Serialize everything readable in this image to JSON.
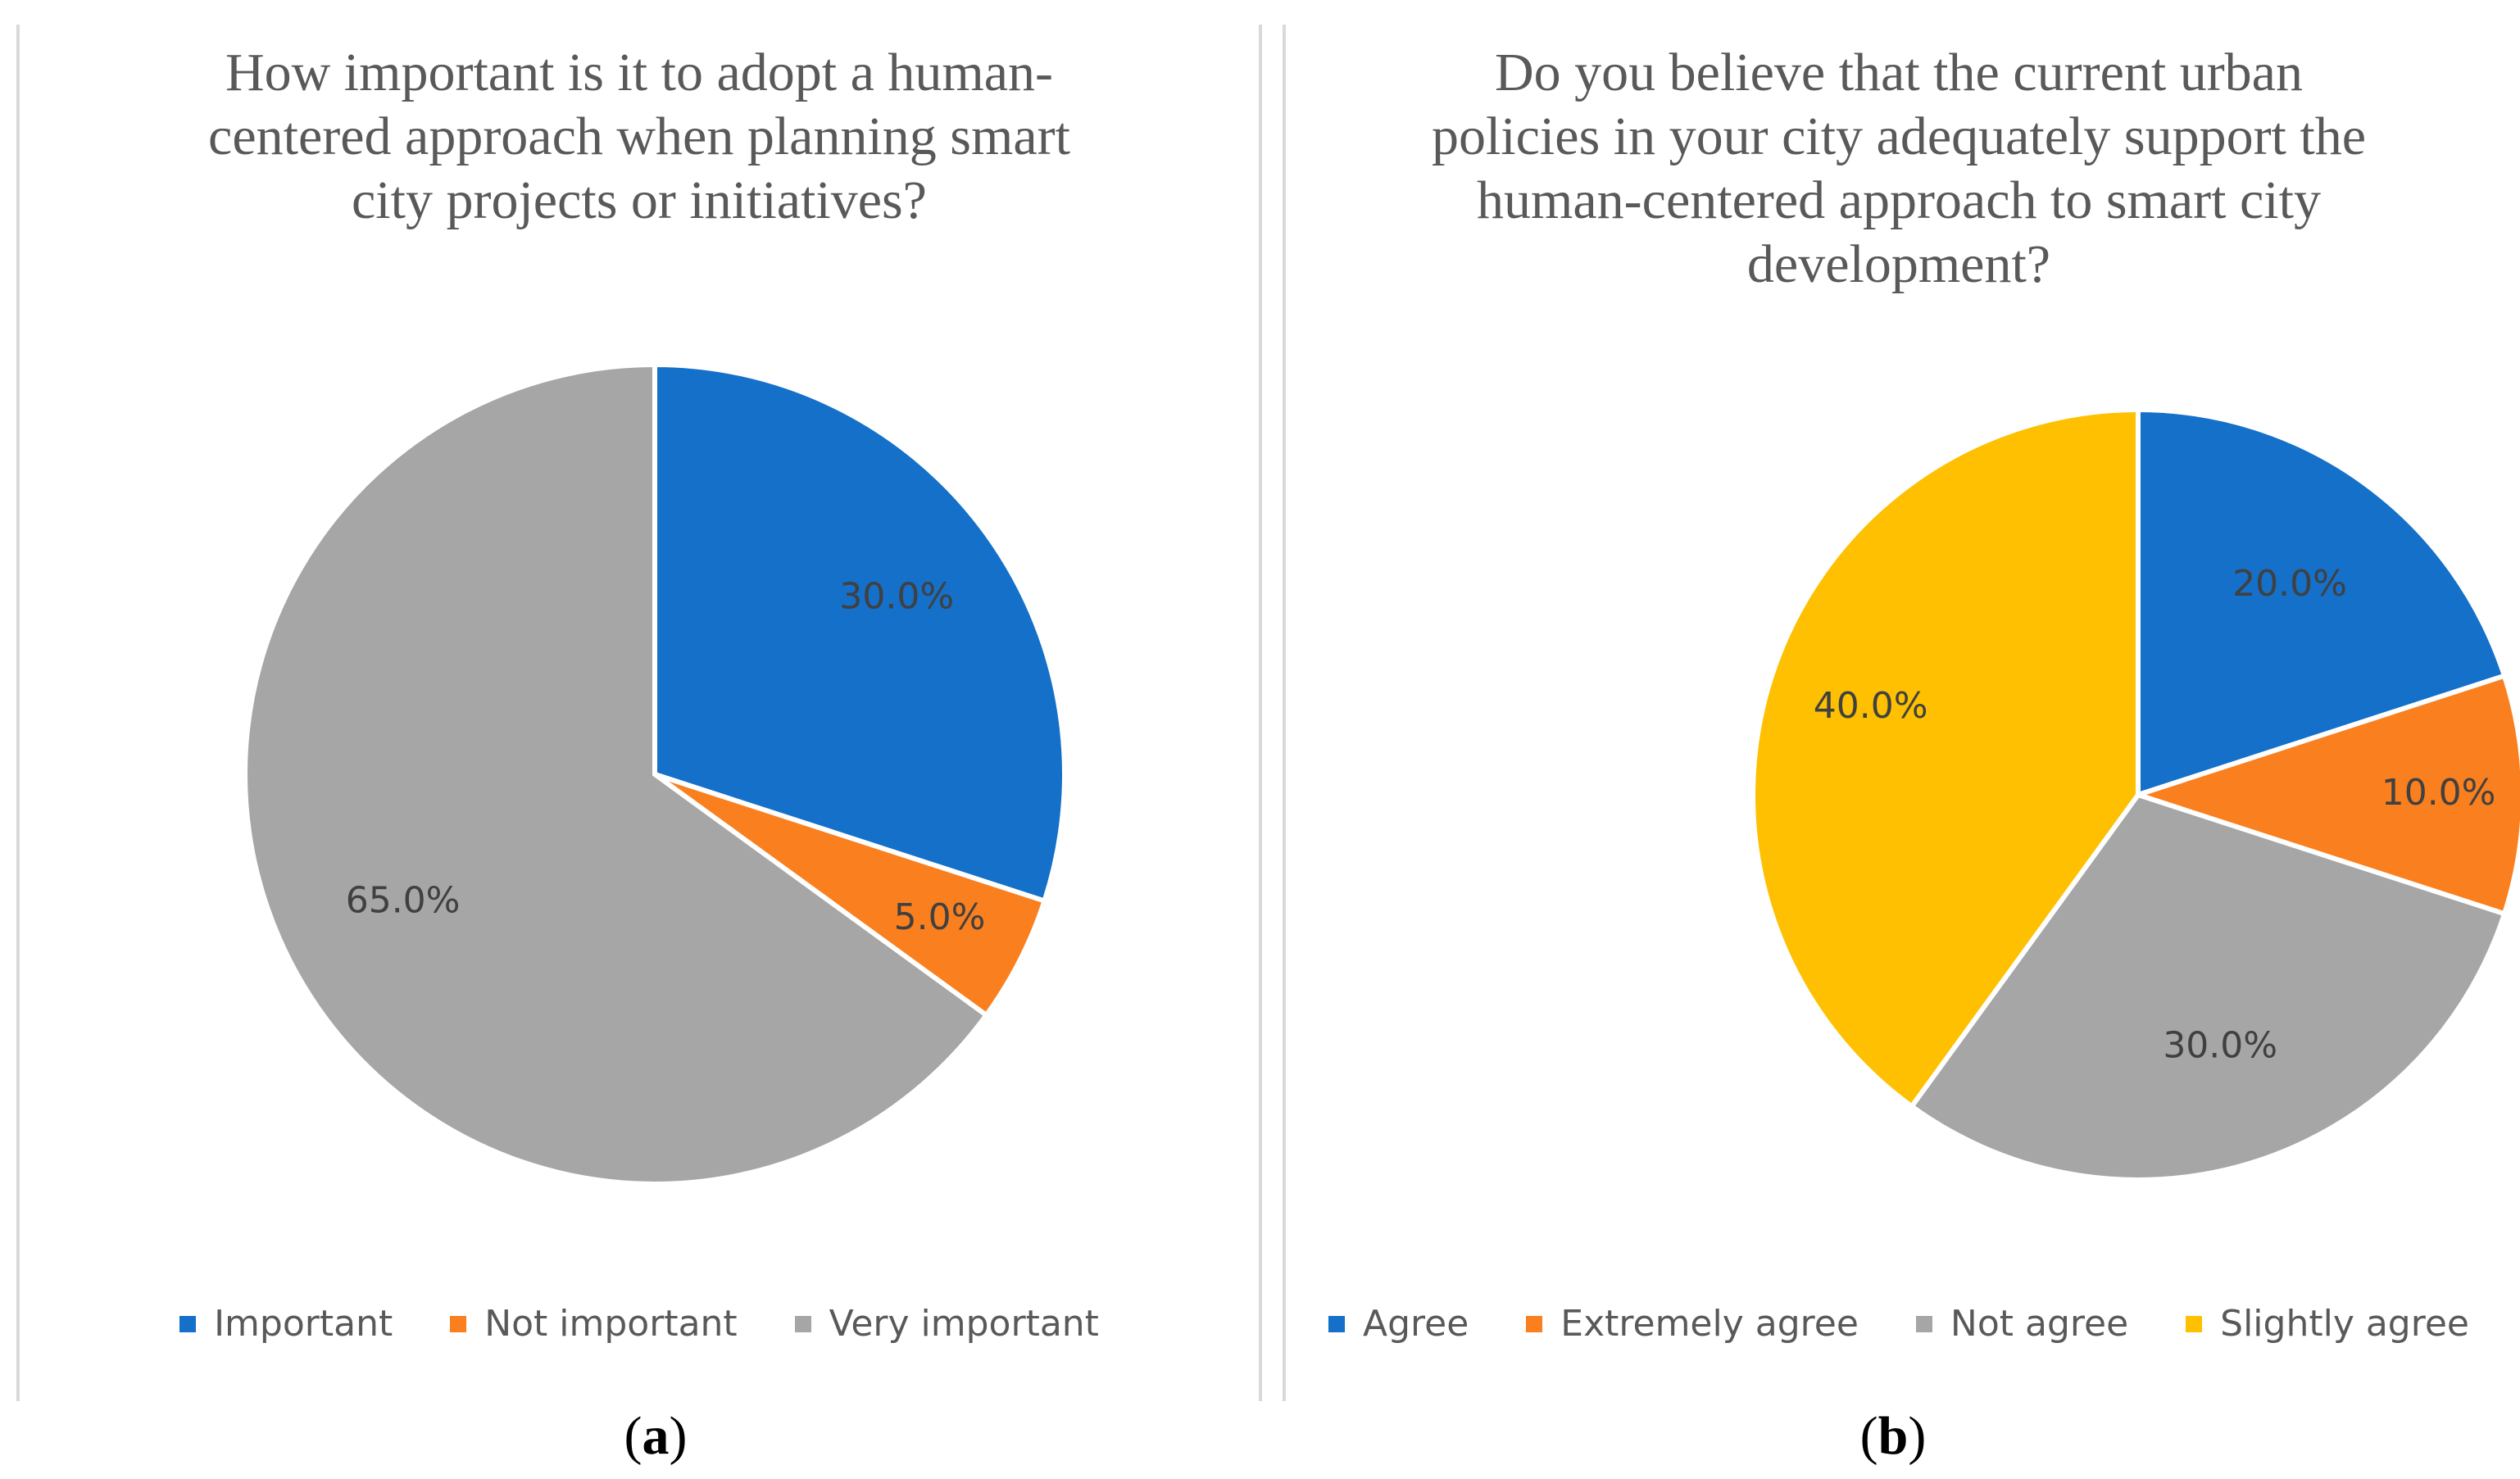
{
  "chart_data": [
    {
      "type": "pie",
      "title": "How important is it to adopt a human-centered approach when planning smart city projects or initiatives?",
      "title_lines": [
        "How important is it to adopt a human-",
        "centered approach when planning smart",
        "city projects or initiatives?"
      ],
      "categories": [
        "Important",
        "Not important",
        "Very important"
      ],
      "values": [
        30.0,
        5.0,
        65.0
      ],
      "labels": [
        "30.0%",
        "5.0%",
        "65.0%"
      ],
      "colors": [
        "#1470c8",
        "#f97f1f",
        "#a6a6a6"
      ],
      "legend_position": "bottom",
      "caption": "a"
    },
    {
      "type": "pie",
      "title": "Do you believe that the current urban policies in your city adequately support the human-centered approach to smart city development?",
      "title_lines": [
        "Do you believe that the current urban",
        "policies in your city adequately support the",
        "human-centered approach to smart city",
        "development?"
      ],
      "categories": [
        "Agree",
        "Extremely agree",
        "Not agree",
        "Slightly agree"
      ],
      "values": [
        20.0,
        10.0,
        30.0,
        40.0
      ],
      "labels": [
        "20.0%",
        "10.0%",
        "30.0%",
        "40.0%"
      ],
      "colors": [
        "#1470c8",
        "#f97f1f",
        "#a6a6a6",
        "#fec000"
      ],
      "legend_position": "bottom",
      "caption": "b"
    }
  ]
}
